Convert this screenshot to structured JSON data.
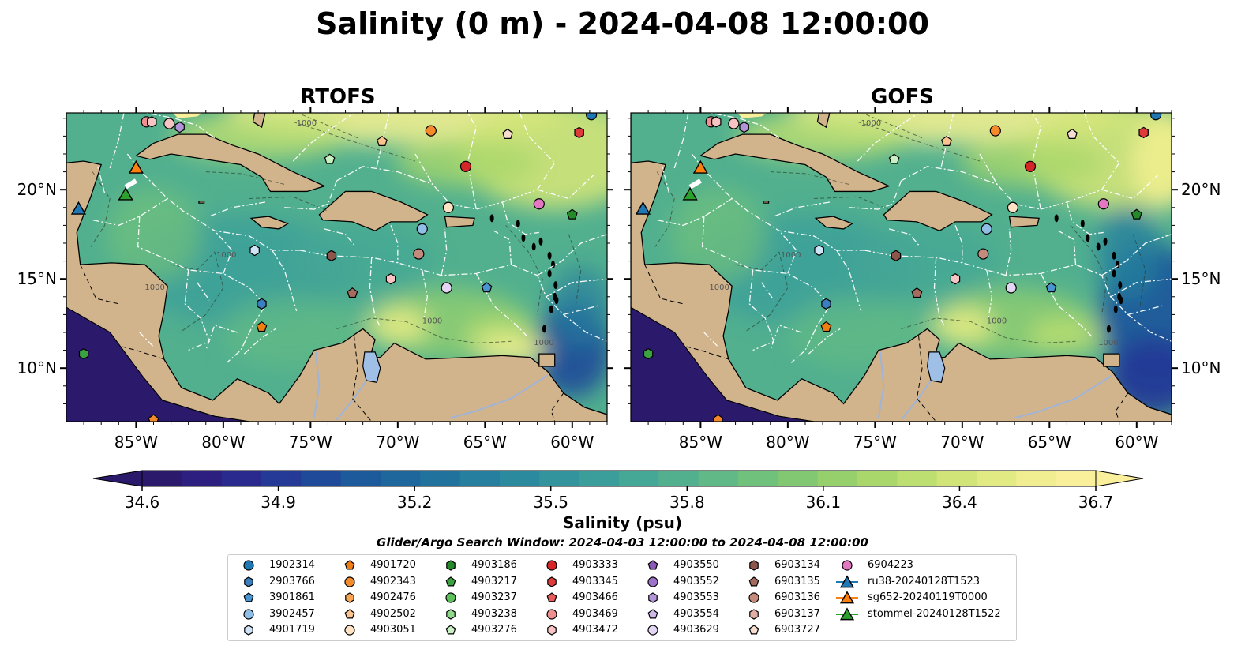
{
  "title": "Salinity (0 m) - 2024-04-08 12:00:00",
  "panels": [
    {
      "title": "RTOFS",
      "variant": "rtofs"
    },
    {
      "title": "GOFS",
      "variant": "gofs"
    }
  ],
  "map": {
    "lon_range": [
      -89,
      -58
    ],
    "lat_range": [
      7,
      24.3
    ],
    "lon_ticks": [
      {
        "value": -85,
        "label": "85°W"
      },
      {
        "value": -80,
        "label": "80°W"
      },
      {
        "value": -75,
        "label": "75°W"
      },
      {
        "value": -70,
        "label": "70°W"
      },
      {
        "value": -65,
        "label": "65°W"
      },
      {
        "value": -60,
        "label": "60°W"
      }
    ],
    "lat_ticks": [
      {
        "value": 10,
        "label": "10°N"
      },
      {
        "value": 15,
        "label": "15°N"
      },
      {
        "value": 20,
        "label": "20°N"
      }
    ],
    "land_color": "#d2b48c",
    "contour_label": "1000"
  },
  "colorbar": {
    "label": "Salinity (psu)",
    "min": 34.6,
    "max": 36.7,
    "ticks": [
      "34.6",
      "34.9",
      "35.2",
      "35.5",
      "35.8",
      "36.1",
      "36.4",
      "36.7"
    ],
    "colors": [
      "#2b1a6b",
      "#2c1f80",
      "#2a2a8e",
      "#253a96",
      "#1f4a99",
      "#1d5a9b",
      "#1e679c",
      "#21739d",
      "#267f9e",
      "#2c8a9e",
      "#33949d",
      "#3b9e9b",
      "#45a796",
      "#52b08f",
      "#60b986",
      "#70c17c",
      "#82c872",
      "#95d06c",
      "#a9d76c",
      "#bdde70",
      "#d1e478",
      "#e2ea83",
      "#f0ee90",
      "#faf09c"
    ]
  },
  "search_window": "Glider/Argo Search Window: 2024-04-03 12:00:00 to 2024-04-08 12:00:00",
  "legend": [
    {
      "label": "1902314",
      "marker": "circle",
      "color": "#1f77b4"
    },
    {
      "label": "2903766",
      "marker": "hexagon",
      "color": "#3a7fbf"
    },
    {
      "label": "3901861",
      "marker": "pentagon",
      "color": "#4a95cf"
    },
    {
      "label": "3902457",
      "marker": "circle",
      "color": "#8fbfe6"
    },
    {
      "label": "4901719",
      "marker": "hexagon",
      "color": "#cfe5f7"
    },
    {
      "label": "4901720",
      "marker": "pentagon",
      "color": "#f07f12"
    },
    {
      "label": "4902343",
      "marker": "circle",
      "color": "#f58a2a"
    },
    {
      "label": "4902476",
      "marker": "hexagon",
      "color": "#f9a654"
    },
    {
      "label": "4902502",
      "marker": "pentagon",
      "color": "#fbc48e"
    },
    {
      "label": "4903051",
      "marker": "circle",
      "color": "#fde3c4"
    },
    {
      "label": "4903186",
      "marker": "hexagon",
      "color": "#248a2a"
    },
    {
      "label": "4903217",
      "marker": "pentagon",
      "color": "#3aa33f"
    },
    {
      "label": "4903237",
      "marker": "circle",
      "color": "#5cc15a"
    },
    {
      "label": "4903238",
      "marker": "hexagon",
      "color": "#8ed98a"
    },
    {
      "label": "4903276",
      "marker": "pentagon",
      "color": "#c8f0c2"
    },
    {
      "label": "4903333",
      "marker": "circle",
      "color": "#d62728"
    },
    {
      "label": "4903345",
      "marker": "hexagon",
      "color": "#e03b3b"
    },
    {
      "label": "4903466",
      "marker": "pentagon",
      "color": "#ea5c5c"
    },
    {
      "label": "4903469",
      "marker": "circle",
      "color": "#f08f8f"
    },
    {
      "label": "4903472",
      "marker": "hexagon",
      "color": "#f8c3c3"
    },
    {
      "label": "4903550",
      "marker": "pentagon",
      "color": "#8c59b8"
    },
    {
      "label": "4903552",
      "marker": "circle",
      "color": "#9e72c8"
    },
    {
      "label": "4903553",
      "marker": "hexagon",
      "color": "#b294d8"
    },
    {
      "label": "4903554",
      "marker": "pentagon",
      "color": "#cdb8e8"
    },
    {
      "label": "4903629",
      "marker": "circle",
      "color": "#e3d6f5"
    },
    {
      "label": "6903134",
      "marker": "hexagon",
      "color": "#8c564b"
    },
    {
      "label": "6903135",
      "marker": "pentagon",
      "color": "#a56b5e"
    },
    {
      "label": "6903136",
      "marker": "circle",
      "color": "#c48a7c"
    },
    {
      "label": "6903137",
      "marker": "hexagon",
      "color": "#e0b0a4"
    },
    {
      "label": "6903727",
      "marker": "pentagon",
      "color": "#f7dccf"
    },
    {
      "label": "6904223",
      "marker": "circle",
      "color": "#e377c2"
    },
    {
      "label": "ru38-20240128T1523",
      "marker": "triangle-line",
      "color": "#1f77b4"
    },
    {
      "label": "sg652-20240119T0000",
      "marker": "triangle-line",
      "color": "#ff7f0e"
    },
    {
      "label": "stommel-20240128T1522",
      "marker": "triangle-line",
      "color": "#2ca02c"
    }
  ],
  "observations": [
    {
      "lon": -84.4,
      "lat": 23.8,
      "marker": "circle",
      "color": "#f08f8f"
    },
    {
      "lon": -84.1,
      "lat": 23.8,
      "marker": "hexagon",
      "color": "#f8c3c3"
    },
    {
      "lon": -83.1,
      "lat": 23.7,
      "marker": "circle",
      "color": "#f8c3c3"
    },
    {
      "lon": -82.5,
      "lat": 23.5,
      "marker": "hexagon",
      "color": "#b294d8"
    },
    {
      "lon": -70.9,
      "lat": 22.7,
      "marker": "pentagon",
      "color": "#fbc48e"
    },
    {
      "lon": -68.1,
      "lat": 23.3,
      "marker": "circle",
      "color": "#f58a2a"
    },
    {
      "lon": -63.7,
      "lat": 23.1,
      "marker": "pentagon",
      "color": "#f7dccf"
    },
    {
      "lon": -59.6,
      "lat": 23.2,
      "marker": "hexagon",
      "color": "#e03b3b"
    },
    {
      "lon": -58.9,
      "lat": 24.2,
      "marker": "circle",
      "color": "#1f77b4"
    },
    {
      "lon": -73.9,
      "lat": 21.7,
      "marker": "pentagon",
      "color": "#c8f0c2"
    },
    {
      "lon": -66.1,
      "lat": 21.3,
      "marker": "circle",
      "color": "#d62728"
    },
    {
      "lon": -67.1,
      "lat": 19.0,
      "marker": "circle",
      "color": "#fde3c4"
    },
    {
      "lon": -61.9,
      "lat": 19.2,
      "marker": "circle",
      "color": "#e377c2"
    },
    {
      "lon": -60.0,
      "lat": 18.6,
      "marker": "pentagon",
      "color": "#248a2a"
    },
    {
      "lon": -68.6,
      "lat": 17.8,
      "marker": "circle",
      "color": "#8fbfe6"
    },
    {
      "lon": -78.2,
      "lat": 16.6,
      "marker": "hexagon",
      "color": "#cfe5f7"
    },
    {
      "lon": -73.8,
      "lat": 16.3,
      "marker": "hexagon",
      "color": "#8c564b"
    },
    {
      "lon": -68.8,
      "lat": 16.4,
      "marker": "circle",
      "color": "#c48a7c"
    },
    {
      "lon": -70.4,
      "lat": 15.0,
      "marker": "hexagon",
      "color": "#f8c3c3"
    },
    {
      "lon": -67.2,
      "lat": 14.5,
      "marker": "circle",
      "color": "#e3d6f5"
    },
    {
      "lon": -64.9,
      "lat": 14.5,
      "marker": "pentagon",
      "color": "#4a95cf"
    },
    {
      "lon": -72.6,
      "lat": 14.2,
      "marker": "pentagon",
      "color": "#a56b5e"
    },
    {
      "lon": -77.8,
      "lat": 13.6,
      "marker": "hexagon",
      "color": "#3a7fbf"
    },
    {
      "lon": -77.8,
      "lat": 12.3,
      "marker": "pentagon",
      "color": "#f07f12"
    },
    {
      "lon": -88.0,
      "lat": 10.8,
      "marker": "hexagon",
      "color": "#3aa33f"
    },
    {
      "lon": -84.0,
      "lat": 7.1,
      "marker": "pentagon",
      "color": "#f58a2a"
    }
  ],
  "gliders": [
    {
      "lon": -88.3,
      "lat": 18.9,
      "color": "#1f77b4"
    },
    {
      "lon": -85.0,
      "lat": 21.2,
      "color": "#ff7f0e"
    },
    {
      "lon": -85.6,
      "lat": 19.7,
      "color": "#2ca02c"
    }
  ]
}
